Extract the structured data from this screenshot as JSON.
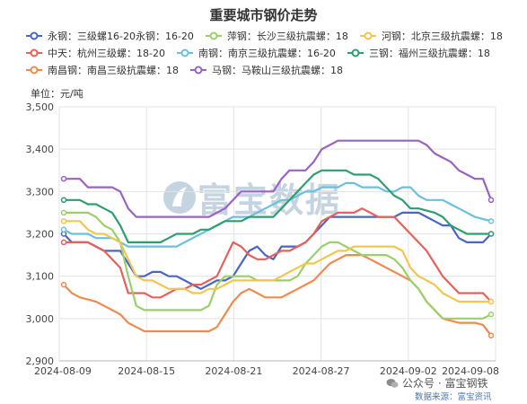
{
  "chart_data": {
    "type": "line",
    "title": "重要城市钢价走势",
    "unit_label": "单位：元/吨",
    "ylim": [
      2900,
      3500
    ],
    "yticks": [
      "2,900",
      "3,000",
      "3,100",
      "3,200",
      "3,300",
      "3,400",
      "3,500"
    ],
    "xticks": [
      "2024-08-09",
      "2024-08-15",
      "2024-08-21",
      "2024-08-27",
      "2024-09-02",
      "2024-09-08"
    ],
    "grid": true,
    "legend_position": "top",
    "series": [
      {
        "name": "永钢：三级螺16-20永钢：16-20",
        "color": "#4a66c4",
        "values": [
          3200,
          3180,
          3180,
          3180,
          3170,
          3160,
          3160,
          3160,
          3130,
          3100,
          3100,
          3110,
          3110,
          3100,
          3100,
          3090,
          3080,
          3070,
          3080,
          3090,
          3090,
          3100,
          3130,
          3160,
          3170,
          3150,
          3140,
          3170,
          3170,
          3170,
          3180,
          3200,
          3220,
          3240,
          3240,
          3240,
          3240,
          3240,
          3240,
          3240,
          3240,
          3240,
          3250,
          3250,
          3250,
          3240,
          3230,
          3220,
          3220,
          3190,
          3180,
          3180,
          3180,
          3200
        ]
      },
      {
        "name": "中天：杭州三级螺：18-20",
        "color": "#e8605a",
        "values": [
          3180,
          3180,
          3180,
          3180,
          3170,
          3160,
          3140,
          3120,
          3060,
          3060,
          3060,
          3050,
          3050,
          3060,
          3070,
          3070,
          3080,
          3080,
          3090,
          3100,
          3140,
          3180,
          3170,
          3150,
          3140,
          3140,
          3150,
          3160,
          3160,
          3170,
          3180,
          3200,
          3230,
          3240,
          3250,
          3250,
          3250,
          3260,
          3250,
          3240,
          3240,
          3240,
          3220,
          3200,
          3180,
          3160,
          3130,
          3100,
          3080,
          3060,
          3060,
          3060,
          3060,
          3040
        ]
      },
      {
        "name": "南昌钢：南昌三级抗震螺：18",
        "color": "#f08a4e",
        "values": [
          3080,
          3060,
          3050,
          3045,
          3040,
          3030,
          3020,
          3010,
          2990,
          2980,
          2970,
          2970,
          2970,
          2970,
          2970,
          2970,
          2970,
          2970,
          2970,
          2980,
          3010,
          3040,
          3060,
          3070,
          3060,
          3050,
          3050,
          3050,
          3060,
          3070,
          3080,
          3090,
          3110,
          3130,
          3140,
          3150,
          3150,
          3150,
          3140,
          3130,
          3120,
          3110,
          3100,
          3090,
          3070,
          3040,
          3020,
          3000,
          2995,
          2990,
          2990,
          2990,
          2985,
          2960
        ]
      },
      {
        "name": "萍钢：长沙三级抗震螺：18",
        "color": "#9ccf6a",
        "values": [
          3250,
          3250,
          3250,
          3250,
          3240,
          3220,
          3210,
          3180,
          3100,
          3030,
          3020,
          3020,
          3020,
          3020,
          3020,
          3020,
          3020,
          3020,
          3030,
          3080,
          3100,
          3100,
          3100,
          3100,
          3090,
          3090,
          3090,
          3090,
          3090,
          3100,
          3130,
          3150,
          3170,
          3180,
          3180,
          3170,
          3160,
          3150,
          3150,
          3150,
          3150,
          3140,
          3120,
          3090,
          3070,
          3040,
          3020,
          3000,
          3000,
          3000,
          3000,
          3000,
          3000,
          3010
        ]
      },
      {
        "name": "南钢：南京三级抗震螺：16-20",
        "color": "#6cc0de",
        "values": [
          3210,
          3200,
          3200,
          3200,
          3190,
          3190,
          3190,
          3180,
          3170,
          3170,
          3170,
          3170,
          3170,
          3170,
          3170,
          3180,
          3190,
          3200,
          3210,
          3220,
          3230,
          3240,
          3240,
          3240,
          3250,
          3260,
          3270,
          3280,
          3280,
          3290,
          3300,
          3300,
          3310,
          3310,
          3310,
          3320,
          3320,
          3310,
          3310,
          3310,
          3300,
          3300,
          3310,
          3310,
          3290,
          3280,
          3280,
          3280,
          3270,
          3260,
          3250,
          3240,
          3235,
          3230
        ]
      },
      {
        "name": "马钢：马鞍山三级抗震螺：18",
        "color": "#9a62c2",
        "values": [
          3330,
          3330,
          3330,
          3310,
          3310,
          3310,
          3310,
          3300,
          3260,
          3240,
          3240,
          3240,
          3240,
          3240,
          3240,
          3240,
          3240,
          3240,
          3240,
          3250,
          3260,
          3280,
          3300,
          3300,
          3300,
          3300,
          3300,
          3330,
          3350,
          3350,
          3350,
          3370,
          3400,
          3410,
          3420,
          3420,
          3420,
          3420,
          3420,
          3420,
          3420,
          3420,
          3420,
          3420,
          3420,
          3410,
          3390,
          3380,
          3370,
          3350,
          3340,
          3330,
          3330,
          3280
        ]
      },
      {
        "name": "河钢：北京三级抗震螺：18",
        "color": "#f2c64e",
        "values": [
          3230,
          3230,
          3230,
          3210,
          3200,
          3200,
          3190,
          3180,
          3140,
          3100,
          3090,
          3090,
          3080,
          3070,
          3070,
          3070,
          3060,
          3060,
          3070,
          3070,
          3080,
          3090,
          3090,
          3090,
          3090,
          3090,
          3090,
          3100,
          3110,
          3120,
          3130,
          3130,
          3140,
          3150,
          3160,
          3160,
          3170,
          3170,
          3170,
          3170,
          3170,
          3170,
          3160,
          3120,
          3100,
          3090,
          3080,
          3060,
          3050,
          3040,
          3040,
          3040,
          3040,
          3040
        ]
      },
      {
        "name": "三钢：福州三级抗震螺：18",
        "color": "#2f9e6e",
        "values": [
          3280,
          3280,
          3280,
          3270,
          3270,
          3260,
          3250,
          3220,
          3180,
          3180,
          3180,
          3180,
          3180,
          3190,
          3200,
          3200,
          3200,
          3210,
          3210,
          3220,
          3230,
          3230,
          3230,
          3240,
          3240,
          3240,
          3240,
          3260,
          3280,
          3300,
          3320,
          3340,
          3350,
          3350,
          3350,
          3350,
          3340,
          3340,
          3340,
          3330,
          3310,
          3290,
          3280,
          3260,
          3260,
          3255,
          3250,
          3240,
          3220,
          3210,
          3200,
          3200,
          3200,
          3200
        ]
      }
    ]
  },
  "watermark": {
    "text": "富宝数据"
  },
  "brand": {
    "text": "公众号 · 富宝钢铁"
  },
  "source": {
    "text": "数据来源：富宝资讯"
  }
}
